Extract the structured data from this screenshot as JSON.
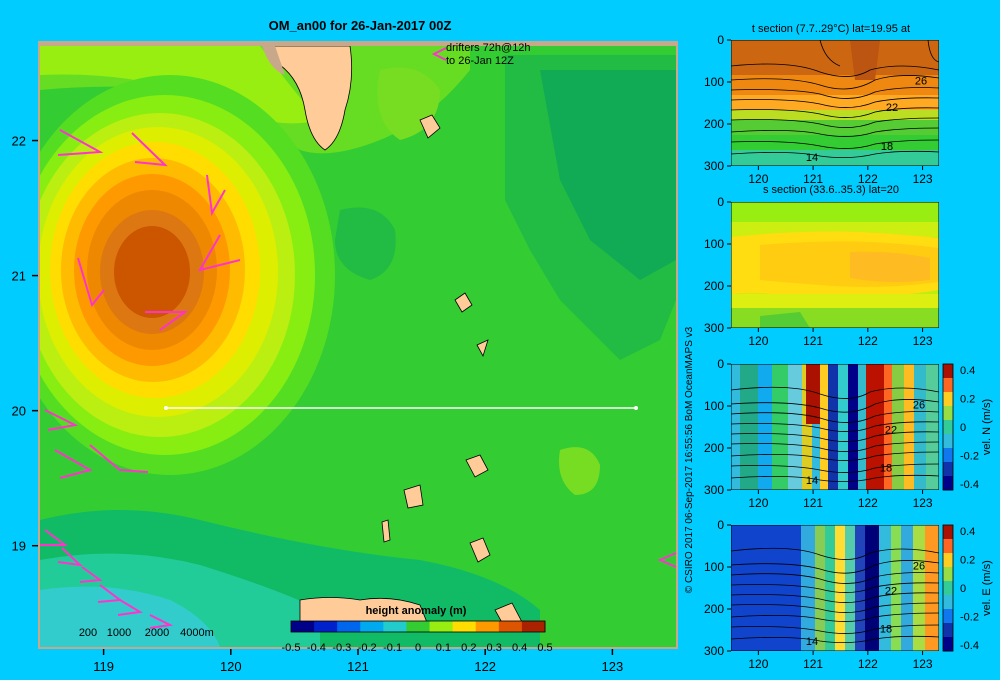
{
  "figure": {
    "background": "#00ccff",
    "credit": "© CSIRO 2017   06-Sep-2017 16:55:56 BoM OceanMAPS v3"
  },
  "chart_data": [
    {
      "type": "heatmap",
      "title": "OM_an00 for 26-Jan-2017 00Z",
      "subtitle": "drifters 72h@12h\nto 26-Jan 12Z",
      "x_ticks": [
        "119",
        "120",
        "121",
        "122",
        "123"
      ],
      "y_ticks": [
        "19",
        "20",
        "21",
        "22"
      ],
      "xlim": [
        118.5,
        123.5
      ],
      "ylim": [
        18.25,
        22.7
      ],
      "colorbar": {
        "label": "height anomaly (m)",
        "ticks": [
          "-0.5",
          "-0.4",
          "-0.3",
          "-0.2",
          "-0.1",
          "0",
          "0.1",
          "0.2",
          "0.3",
          "0.4",
          "0.5"
        ],
        "range": [
          -0.5,
          0.5
        ]
      },
      "depth_legend": [
        "200",
        "1000",
        "2000",
        "4000m"
      ],
      "eddy": {
        "lon": 119.45,
        "lat": 21.05,
        "peak_anomaly": 0.45
      },
      "section_line": {
        "lon": [
          119.5,
          123.2
        ],
        "lat": 20.0
      },
      "colors": {
        "land": "#ffcc99",
        "background_sea": "#33cc33",
        "positive": "#cc5500"
      }
    },
    {
      "type": "heatmap",
      "title": "t section (7.7..29°C) lat=19.95 at",
      "x_ticks": [
        "120",
        "121",
        "122",
        "123"
      ],
      "y_ticks": [
        "0",
        "100",
        "200",
        "300"
      ],
      "xlim": [
        119.5,
        123.3
      ],
      "ylim": [
        300,
        0
      ],
      "contour_labels": [
        "26",
        "22",
        "18",
        "14"
      ]
    },
    {
      "type": "heatmap",
      "title": "s section (33.6..35.3) lat=20",
      "x_ticks": [
        "120",
        "121",
        "122",
        "123"
      ],
      "y_ticks": [
        "0",
        "100",
        "200",
        "300"
      ],
      "xlim": [
        119.5,
        123.3
      ],
      "ylim": [
        300,
        0
      ]
    },
    {
      "type": "heatmap",
      "title": "",
      "x_ticks": [
        "120",
        "121",
        "122",
        "123"
      ],
      "y_ticks": [
        "0",
        "100",
        "200",
        "300"
      ],
      "xlim": [
        119.5,
        123.3
      ],
      "ylim": [
        300,
        0
      ],
      "contour_labels": [
        "26",
        "22",
        "18",
        "14"
      ],
      "colorbar": {
        "label": "vel. N (m/s)",
        "ticks": [
          "0.4",
          "0.2",
          "0",
          "-0.2",
          "-0.4"
        ],
        "range": [
          -0.4,
          0.4
        ]
      }
    },
    {
      "type": "heatmap",
      "title": "",
      "x_ticks": [
        "120",
        "121",
        "122",
        "123"
      ],
      "y_ticks": [
        "0",
        "100",
        "200",
        "300"
      ],
      "xlim": [
        119.5,
        123.3
      ],
      "ylim": [
        300,
        0
      ],
      "contour_labels": [
        "26",
        "22",
        "18",
        "14"
      ],
      "colorbar": {
        "label": "vel. E (m/s)",
        "ticks": [
          "0.4",
          "0.2",
          "0",
          "-0.2",
          "-0.4"
        ],
        "range": [
          -0.4,
          0.4
        ]
      }
    }
  ]
}
